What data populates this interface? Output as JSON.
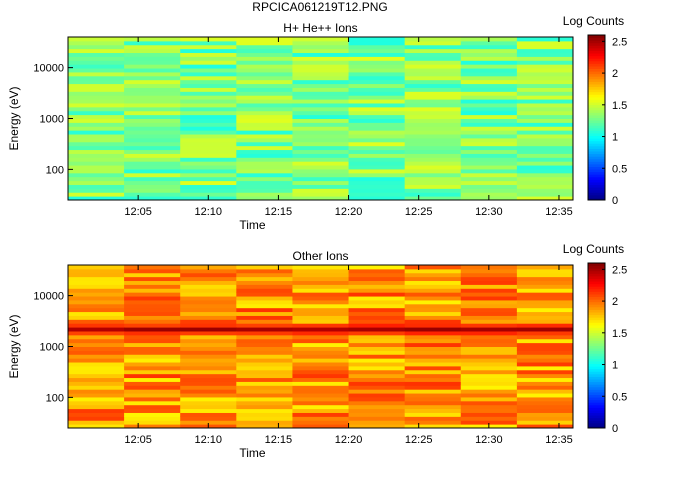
{
  "figure_title": "RPCICA061219T12.PNG",
  "chart_data": [
    {
      "type": "heatmap",
      "title": "H+ He++ Ions",
      "xlabel": "Time",
      "ylabel": "Energy (eV)",
      "y_scale": "log",
      "ylim": [
        25,
        40000
      ],
      "xlim": [
        "12:00",
        "12:36"
      ],
      "x_ticks": [
        "12:05",
        "12:10",
        "12:15",
        "12:20",
        "12:25",
        "12:30",
        "12:35"
      ],
      "y_ticks": [
        {
          "value": 100,
          "label": "100"
        },
        {
          "value": 1000,
          "label": "1000"
        },
        {
          "value": 10000,
          "label": "10000"
        }
      ],
      "time_bins": [
        "12:00",
        "12:04",
        "12:08",
        "12:12",
        "12:16",
        "12:20",
        "12:24",
        "12:28",
        "12:32"
      ],
      "energy_bins": 42,
      "baseline_log_counts": 1.3,
      "peak_band": null,
      "colorbar": {
        "label": "Log Counts",
        "range": [
          0,
          2.6
        ],
        "ticks": [
          0,
          0.5,
          1,
          1.5,
          2,
          2.5
        ],
        "tick_labels": [
          "0",
          "0.5",
          "1",
          "1.5",
          "2",
          "2.5"
        ]
      },
      "grid": false
    },
    {
      "type": "heatmap",
      "title": "Other Ions",
      "xlabel": "Time",
      "ylabel": "Energy (eV)",
      "y_scale": "log",
      "ylim": [
        25,
        40000
      ],
      "xlim": [
        "12:00",
        "12:36"
      ],
      "x_ticks": [
        "12:05",
        "12:10",
        "12:15",
        "12:20",
        "12:25",
        "12:30",
        "12:35"
      ],
      "y_ticks": [
        {
          "value": 100,
          "label": "100"
        },
        {
          "value": 1000,
          "label": "1000"
        },
        {
          "value": 10000,
          "label": "10000"
        }
      ],
      "time_bins": [
        "12:00",
        "12:04",
        "12:08",
        "12:12",
        "12:16",
        "12:20",
        "12:24",
        "12:28",
        "12:32"
      ],
      "energy_bins": 42,
      "baseline_log_counts": 1.9,
      "peak_band": {
        "energy_center": 2300,
        "log_counts": 2.55
      },
      "colorbar": {
        "label": "Log Counts",
        "range": [
          0,
          2.6
        ],
        "ticks": [
          0,
          0.5,
          1,
          1.5,
          2,
          2.5
        ],
        "tick_labels": [
          "0",
          "0.5",
          "1",
          "1.5",
          "2",
          "2.5"
        ]
      },
      "grid": false
    }
  ]
}
